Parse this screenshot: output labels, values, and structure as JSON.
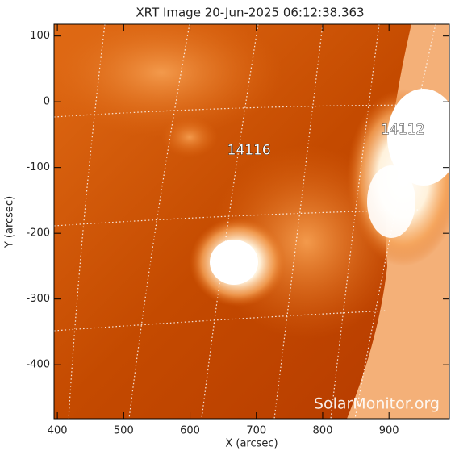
{
  "chart_data": {
    "type": "image",
    "title": "XRT Image 20-Jun-2025 06:12:38.363",
    "x_label": "X (arcsec)",
    "y_label": "Y (arcsec)",
    "xlim": [
      395,
      991
    ],
    "ylim": [
      -482,
      118
    ],
    "xticks": [
      400,
      500,
      600,
      700,
      800,
      900
    ],
    "yticks": [
      100,
      0,
      -100,
      -200,
      -300,
      -400
    ],
    "annotations": [
      {
        "text": "14116",
        "x": 689,
        "y": -74
      },
      {
        "text": "14112",
        "x": 921,
        "y": -43
      }
    ],
    "watermark": "SolarMonitor.org"
  }
}
